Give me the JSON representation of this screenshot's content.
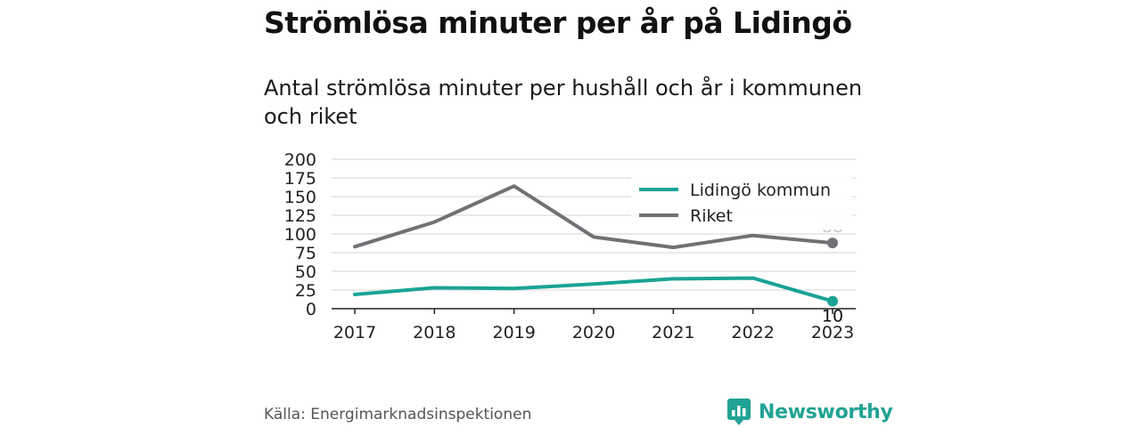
{
  "header": {
    "title": "Strömlösa minuter per år på Lidingö",
    "subtitle": "Antal strömlösa minuter per hushåll och år i kommunen och riket"
  },
  "footer": {
    "source": "Källa: Energimarknadsinspektionen",
    "brand": "Newsworthy",
    "brand_icon": "bar-chart-speech-bubble-icon",
    "brand_color": "#20a394"
  },
  "chart_data": {
    "type": "line",
    "categories": [
      "2017",
      "2018",
      "2019",
      "2020",
      "2021",
      "2022",
      "2023"
    ],
    "series": [
      {
        "name": "Lidingö kommun",
        "values": [
          19,
          28,
          27,
          33,
          40,
          41,
          10
        ],
        "color": "#1aa395"
      },
      {
        "name": "Riket",
        "values": [
          83,
          116,
          164,
          96,
          82,
          98,
          88
        ],
        "color": "#717075"
      }
    ],
    "end_labels": [
      "10",
      "88"
    ],
    "ylim": [
      0,
      200
    ],
    "yticks": [
      0,
      25,
      50,
      75,
      100,
      125,
      150,
      175,
      200
    ],
    "grid": true,
    "legend": "top-right",
    "xlabel": "",
    "ylabel": ""
  }
}
